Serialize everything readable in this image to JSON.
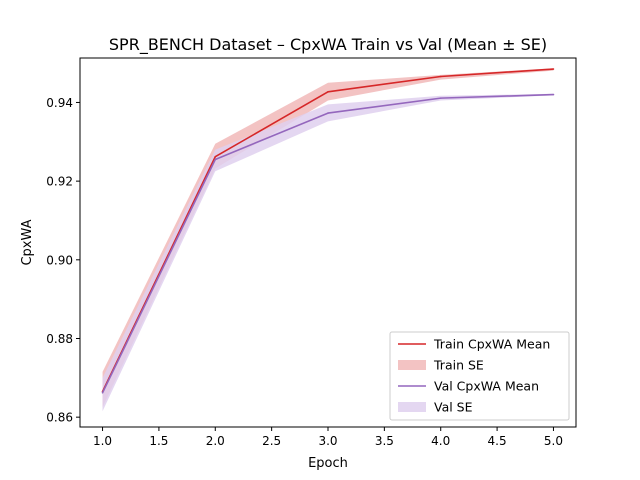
{
  "chart_data": {
    "type": "line",
    "title": "SPR_BENCH Dataset – CpxWA Train vs Val (Mean ± SE)",
    "xlabel": "Epoch",
    "ylabel": "CpxWA",
    "xlim": [
      0.8,
      5.2
    ],
    "ylim": [
      0.8575,
      0.9513
    ],
    "xticks": [
      1.0,
      1.5,
      2.0,
      2.5,
      3.0,
      3.5,
      4.0,
      4.5,
      5.0
    ],
    "xtick_labels": [
      "1.0",
      "1.5",
      "2.0",
      "2.5",
      "3.0",
      "3.5",
      "4.0",
      "4.5",
      "5.0"
    ],
    "yticks": [
      0.86,
      0.88,
      0.9,
      0.92,
      0.94
    ],
    "ytick_labels": [
      "0.86",
      "0.88",
      "0.90",
      "0.92",
      "0.94"
    ],
    "grid": false,
    "legend_position": "lower-right",
    "x": [
      1,
      2,
      3,
      4,
      5
    ],
    "series": [
      {
        "name": "Train CpxWA Mean",
        "band_name": "Train SE",
        "color": "#d62728",
        "band_color": "#f1b8b8",
        "values": [
          0.8665,
          0.9262,
          0.9427,
          0.9466,
          0.9485
        ],
        "lower": [
          0.8625,
          0.9232,
          0.9405,
          0.9458,
          0.9481
        ],
        "upper": [
          0.8715,
          0.9295,
          0.945,
          0.947,
          0.9487
        ]
      },
      {
        "name": "Val CpxWA Mean",
        "band_name": "Val SE",
        "color": "#9467bd",
        "band_color": "#dfd0ef",
        "values": [
          0.8662,
          0.9255,
          0.9373,
          0.9411,
          0.942
        ],
        "lower": [
          0.8615,
          0.9225,
          0.9352,
          0.9405,
          0.9418
        ],
        "upper": [
          0.87,
          0.928,
          0.9395,
          0.9417,
          0.9422
        ]
      }
    ]
  }
}
